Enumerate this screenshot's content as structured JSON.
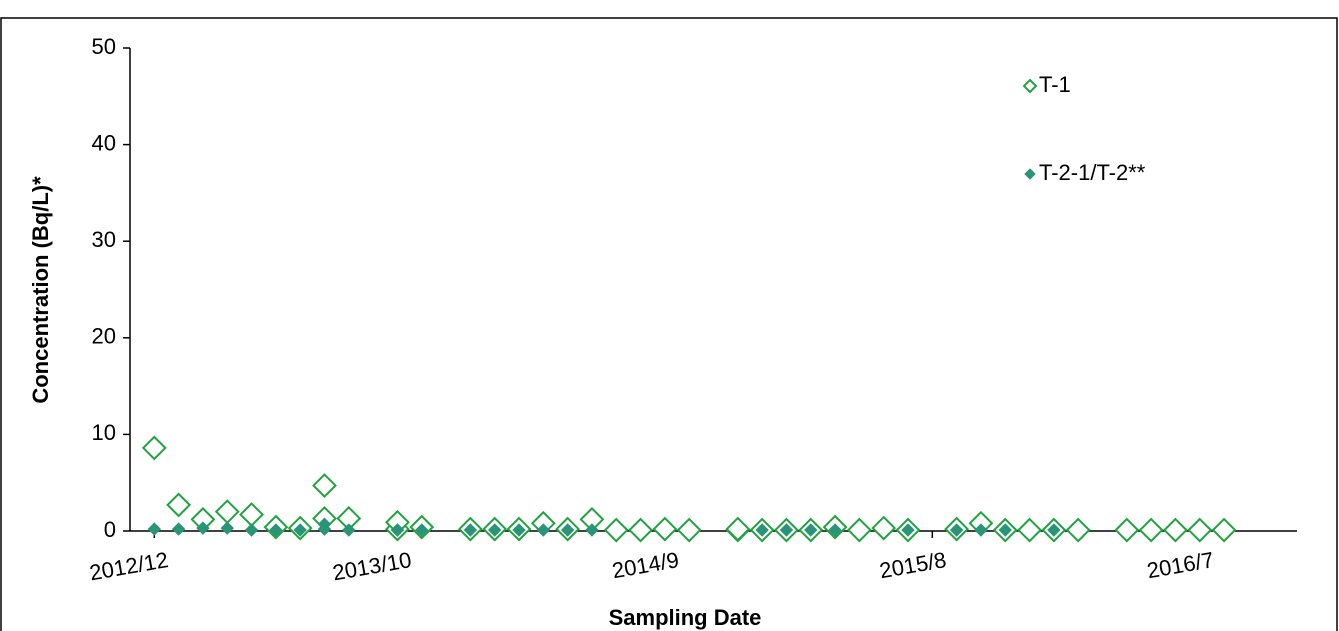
{
  "chart_data": {
    "type": "scatter",
    "x_label": "Sampling Date",
    "y_label": "Concentration (Bq/L)*",
    "xlim": [
      "2012/11",
      "2016/11"
    ],
    "xticks": [
      "2012/12",
      "2013/10",
      "2014/9",
      "2015/8",
      "2016/7"
    ],
    "ylim": [
      0,
      50
    ],
    "yticks": [
      0,
      10,
      20,
      30,
      40,
      50
    ],
    "grid": false,
    "legend": "upper right",
    "series": [
      {
        "name": "T-1",
        "color": "#1fa33f",
        "marker": "diamond-open",
        "x": [
          "2012/12",
          "2013/1",
          "2013/2",
          "2013/3",
          "2013/4",
          "2013/5",
          "2013/6",
          "2013/7",
          "2013/7",
          "2013/8",
          "2013/10",
          "2013/10",
          "2013/11",
          "2014/1",
          "2014/2",
          "2014/3",
          "2014/4",
          "2014/5",
          "2014/6",
          "2014/7",
          "2014/8",
          "2014/9",
          "2014/10",
          "2014/12",
          "2014/12",
          "2015/1",
          "2015/2",
          "2015/3",
          "2015/4",
          "2015/5",
          "2015/6",
          "2015/7",
          "2015/9",
          "2015/10",
          "2015/11",
          "2015/12",
          "2016/1",
          "2016/2",
          "2016/4",
          "2016/5",
          "2016/6",
          "2016/7",
          "2016/8"
        ],
        "values": [
          8.6,
          2.7,
          1.2,
          2.0,
          1.7,
          0.4,
          0.3,
          4.7,
          1.3,
          1.3,
          0.2,
          0.9,
          0.4,
          0.2,
          0.2,
          0.2,
          0.8,
          0.2,
          1.2,
          0.1,
          0.1,
          0.2,
          0.1,
          0.1,
          0.2,
          0.1,
          0.1,
          0.1,
          0.4,
          0.1,
          0.3,
          0.1,
          0.2,
          0.8,
          0.1,
          0.1,
          0.1,
          0.1,
          0.1,
          0.1,
          0.1,
          0.1,
          0.1
        ]
      },
      {
        "name": "T-2-1/T-2**",
        "color": "#2a9478",
        "marker": "diamond",
        "x": [
          "2012/12",
          "2013/1",
          "2013/2",
          "2013/3",
          "2013/4",
          "2013/5",
          "2013/6",
          "2013/7",
          "2013/7",
          "2013/8",
          "2013/10",
          "2013/10",
          "2013/11",
          "2014/1",
          "2014/2",
          "2014/3",
          "2014/4",
          "2014/5",
          "2014/6",
          "2015/1",
          "2015/2",
          "2015/3",
          "2015/4",
          "2015/7",
          "2015/9",
          "2015/10",
          "2015/11",
          "2016/1"
        ],
        "values": [
          0.2,
          0.2,
          0.3,
          0.3,
          0.1,
          0.1,
          0.1,
          0.2,
          0.7,
          0.1,
          0.1,
          0.1,
          0.1,
          0.1,
          0.1,
          0.1,
          0.1,
          0.1,
          0.1,
          0.1,
          0.1,
          0.1,
          0.1,
          0.1,
          0.1,
          0.1,
          0.1,
          0.1
        ]
      }
    ]
  }
}
